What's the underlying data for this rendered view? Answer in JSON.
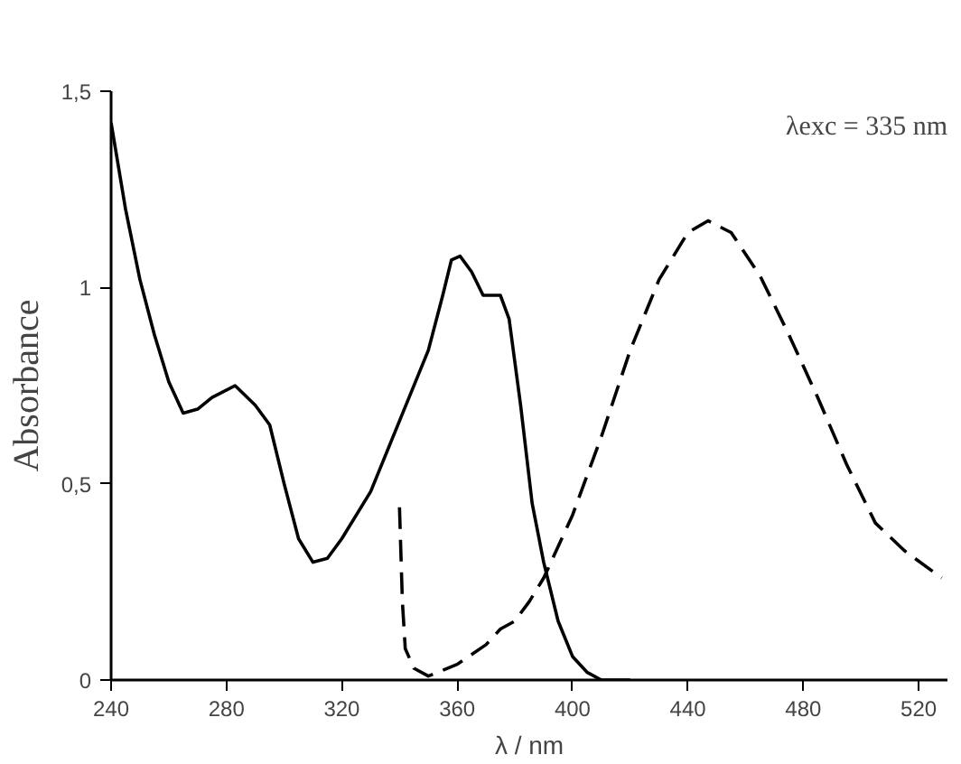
{
  "chart_data": {
    "type": "line",
    "xlabel": "λ / nm",
    "ylabel": "Absorbance",
    "annotations": [
      "λexc = 335 nm"
    ],
    "xlim": [
      240,
      530
    ],
    "ylim": [
      0,
      1.5
    ],
    "xticks": [
      240,
      280,
      320,
      360,
      400,
      440,
      480,
      520
    ],
    "yticks": [
      0,
      {
        "value": 0.5,
        "label": "0,5"
      },
      1,
      {
        "value": 1.5,
        "label": "1,5"
      }
    ],
    "grid": false,
    "marker": "none",
    "series": [
      {
        "color": "#000000",
        "line_style": "solid",
        "x": [
          240,
          245,
          250,
          255,
          260,
          265,
          270,
          275,
          283,
          290,
          295,
          300,
          305,
          310,
          315,
          320,
          330,
          340,
          350,
          355,
          358,
          361,
          365,
          369,
          375,
          378,
          382,
          386,
          390,
          395,
          400,
          405,
          410,
          420
        ],
        "values": [
          1.42,
          1.2,
          1.02,
          0.88,
          0.76,
          0.68,
          0.69,
          0.72,
          0.75,
          0.7,
          0.65,
          0.5,
          0.36,
          0.3,
          0.31,
          0.36,
          0.48,
          0.66,
          0.84,
          0.98,
          1.07,
          1.08,
          1.04,
          0.98,
          0.98,
          0.92,
          0.7,
          0.45,
          0.3,
          0.15,
          0.06,
          0.02,
          0.0,
          0.0
        ]
      },
      {
        "color": "#000000",
        "line_style": "dashed",
        "x": [
          340,
          341,
          342,
          345,
          350,
          360,
          370,
          375,
          380,
          385,
          390,
          400,
          410,
          420,
          430,
          440,
          447,
          455,
          465,
          475,
          485,
          495,
          505,
          515,
          528
        ],
        "values": [
          0.44,
          0.2,
          0.08,
          0.03,
          0.01,
          0.04,
          0.09,
          0.13,
          0.15,
          0.2,
          0.26,
          0.42,
          0.62,
          0.84,
          1.02,
          1.14,
          1.17,
          1.14,
          1.03,
          0.88,
          0.72,
          0.55,
          0.4,
          0.33,
          0.26
        ]
      }
    ]
  }
}
